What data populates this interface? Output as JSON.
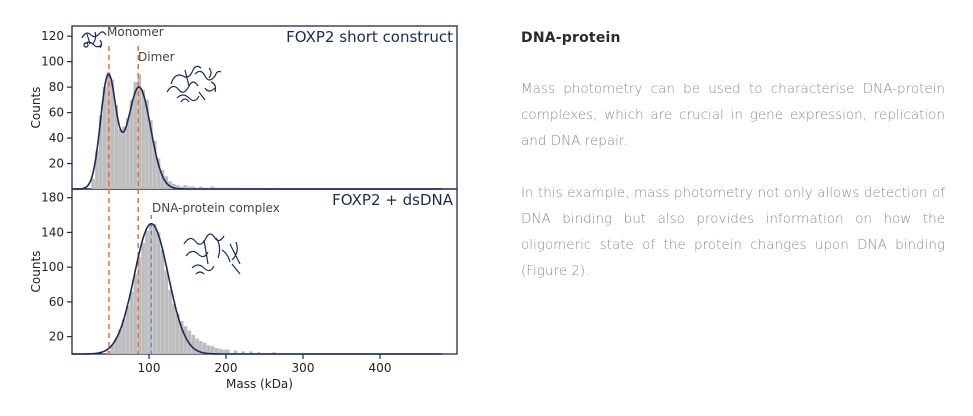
{
  "text": {
    "title": "DNA-protein",
    "paragraphs": [
      "Mass photometry can be used to characterise DNA-protein complexes, which are crucial in gene expression, replication and DNA repair.",
      "In this example, mass photometry not only allows detection of DNA binding but also provides information on how the oligomeric state of the protein changes upon DNA binding (Figure 2)."
    ]
  },
  "colors": {
    "histogram": "#bdbdbd",
    "fit_curve": "#1b2a55",
    "reference_line": "#e8632b",
    "complex_line": "#6f7fb8",
    "frame": "#1b2a55"
  },
  "chart_data": [
    {
      "type": "bar",
      "panel_title": "FOXP2 short construct",
      "xlabel": "",
      "ylabel": "Counts",
      "xlim": [
        0,
        500
      ],
      "ylim": [
        0,
        128
      ],
      "yticks": [
        20,
        40,
        60,
        80,
        100,
        120
      ],
      "grid": false,
      "annotations": [
        "Monomer",
        "Dimer"
      ],
      "reference_lines_x": [
        48,
        86
      ],
      "bin_width": 5,
      "bins_x": [
        25,
        30,
        35,
        40,
        45,
        50,
        55,
        60,
        65,
        70,
        75,
        80,
        85,
        90,
        95,
        100,
        105,
        110,
        115,
        120,
        125,
        130,
        135,
        140,
        145,
        150,
        155,
        160,
        165,
        170,
        175,
        180,
        185,
        190,
        195,
        200,
        205,
        210,
        215,
        220,
        230,
        240,
        260
      ],
      "counts": [
        8,
        30,
        58,
        80,
        92,
        86,
        66,
        47,
        49,
        56,
        70,
        84,
        90,
        78,
        70,
        54,
        38,
        24,
        15,
        10,
        6,
        4,
        3,
        2,
        3,
        2,
        2,
        1,
        2,
        1,
        1,
        2,
        1,
        1,
        1,
        1,
        1,
        1,
        1,
        1,
        1,
        1,
        1
      ],
      "fit_curve": [
        {
          "name": "",
          "mu": 47,
          "sigma": 10,
          "amplitude": 88
        },
        {
          "name": "",
          "mu": 87,
          "sigma": 15,
          "amplitude": 80
        }
      ],
      "illustrations": [
        "monomer-protein-structure",
        "dimer-protein-structure"
      ]
    },
    {
      "type": "bar",
      "panel_title": "FOXP2 + dsDNA",
      "xlabel": "Mass (kDa)",
      "ylabel": "Counts",
      "xlim": [
        0,
        500
      ],
      "ylim": [
        0,
        190
      ],
      "yticks": [
        20,
        60,
        100,
        140,
        180
      ],
      "xticks": [
        100,
        200,
        300,
        400
      ],
      "grid": false,
      "annotations": [
        "DNA-protein complex"
      ],
      "reference_lines_x": [
        48,
        86
      ],
      "complex_line_x": 103,
      "bin_width": 5,
      "bins_x": [
        45,
        50,
        55,
        60,
        65,
        70,
        75,
        80,
        85,
        90,
        95,
        100,
        105,
        110,
        115,
        120,
        125,
        130,
        135,
        140,
        145,
        150,
        155,
        160,
        165,
        170,
        175,
        180,
        185,
        190,
        195,
        200,
        210,
        220,
        230,
        240,
        260,
        280
      ],
      "counts": [
        4,
        10,
        18,
        28,
        40,
        55,
        72,
        92,
        112,
        128,
        142,
        150,
        150,
        140,
        120,
        96,
        74,
        58,
        46,
        38,
        32,
        27,
        22,
        18,
        15,
        13,
        10,
        9,
        7,
        6,
        5,
        5,
        4,
        3,
        3,
        2,
        2,
        1
      ],
      "fit_curve": [
        {
          "name": "",
          "mu": 103,
          "sigma": 22,
          "amplitude": 150
        }
      ],
      "illustrations": [
        "dna-protein-complex-structure"
      ]
    }
  ]
}
